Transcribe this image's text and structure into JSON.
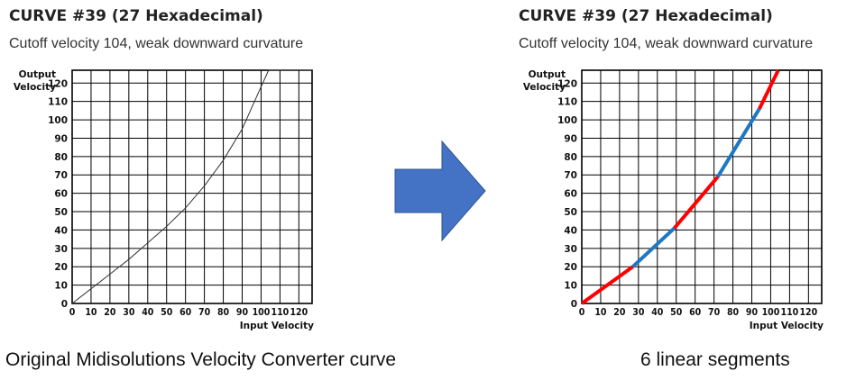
{
  "panels": {
    "left": {
      "title": "CURVE #39 (27 Hexadecimal)",
      "subtitle": "Cutoff velocity 104, weak downward curvature",
      "caption": "Original Midisolutions Velocity Converter curve"
    },
    "right": {
      "title": "CURVE #39 (27 Hexadecimal)",
      "subtitle": "Cutoff velocity 104, weak downward curvature",
      "caption": "6 linear segments"
    }
  },
  "arrow": {
    "color": "#4472C4",
    "icon": "right-arrow-icon"
  },
  "chart_data": [
    {
      "type": "line",
      "ylabel_line1": "Output",
      "ylabel_line2": "Velocity",
      "xlabel": "Input Velocity",
      "xlim": [
        0,
        127
      ],
      "ylim": [
        0,
        127
      ],
      "grid": true,
      "xticks": [
        0,
        10,
        20,
        30,
        40,
        50,
        60,
        70,
        80,
        90,
        100,
        110,
        120
      ],
      "yticks": [
        0,
        10,
        20,
        30,
        40,
        50,
        60,
        70,
        80,
        90,
        100,
        110,
        120
      ],
      "series": [
        {
          "color": "#333333",
          "x": [
            0,
            10,
            20,
            30,
            40,
            50,
            60,
            70,
            80,
            90,
            100,
            104,
            127
          ],
          "y": [
            0,
            8,
            16,
            24,
            33,
            42,
            52,
            64,
            78,
            95,
            118,
            127,
            127
          ]
        }
      ]
    },
    {
      "type": "line",
      "ylabel_line1": "Output",
      "ylabel_line2": "Velocity",
      "xlabel": "Input Velocity",
      "xlim": [
        0,
        127
      ],
      "ylim": [
        0,
        127
      ],
      "grid": true,
      "xticks": [
        0,
        10,
        20,
        30,
        40,
        50,
        60,
        70,
        80,
        90,
        100,
        110,
        120
      ],
      "yticks": [
        0,
        10,
        20,
        30,
        40,
        50,
        60,
        70,
        80,
        90,
        100,
        110,
        120
      ],
      "segments": [
        {
          "color": "#FF0000",
          "x": [
            0,
            27
          ],
          "y": [
            0,
            20
          ]
        },
        {
          "color": "#1F77C4",
          "x": [
            27,
            49
          ],
          "y": [
            20,
            41
          ]
        },
        {
          "color": "#FF0000",
          "x": [
            49,
            72
          ],
          "y": [
            41,
            69
          ]
        },
        {
          "color": "#1F77C4",
          "x": [
            72,
            94
          ],
          "y": [
            69,
            106
          ]
        },
        {
          "color": "#FF0000",
          "x": [
            94,
            104
          ],
          "y": [
            106,
            127
          ]
        },
        {
          "color": "#222222",
          "x": [
            104,
            127
          ],
          "y": [
            127,
            127
          ]
        }
      ]
    }
  ]
}
